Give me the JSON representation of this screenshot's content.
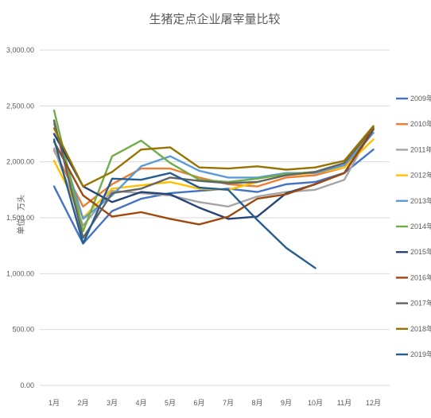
{
  "chart_data": {
    "type": "line",
    "title": "生猪定点企业屠宰量比较",
    "ylabel": "单位：万头",
    "xlabel": "",
    "ylim": [
      0,
      3000
    ],
    "yticks": [
      0,
      500,
      1000,
      1500,
      2000,
      2500,
      3000
    ],
    "ytick_labels": [
      "0.00",
      "500.00",
      "1,000.00",
      "1,500.00",
      "2,000.00",
      "2,500.00",
      "3,000.00"
    ],
    "grid": true,
    "legend_position": "right",
    "categories": [
      "1月",
      "2月",
      "3月",
      "4月",
      "5月",
      "6月",
      "7月",
      "8月",
      "9月",
      "10月",
      "11月",
      "12月"
    ],
    "series": [
      {
        "name": "2009年",
        "color": "#4472C4",
        "values": [
          1780,
          1270,
          1560,
          1670,
          1720,
          1740,
          1760,
          1730,
          1800,
          1820,
          1900,
          2110
        ]
      },
      {
        "name": "2010年",
        "color": "#ED7D31",
        "values": [
          2100,
          1600,
          1800,
          1940,
          1940,
          1860,
          1800,
          1780,
          1860,
          1880,
          1950,
          2260
        ]
      },
      {
        "name": "2011年",
        "color": "#A5A5A5",
        "values": [
          2120,
          1430,
          1740,
          1720,
          1700,
          1640,
          1600,
          1690,
          1730,
          1750,
          1840,
          2310
        ]
      },
      {
        "name": "2012年",
        "color": "#FFC000",
        "values": [
          2010,
          1500,
          1760,
          1790,
          1820,
          1760,
          1750,
          1820,
          1880,
          1900,
          1950,
          2200
        ]
      },
      {
        "name": "2013年",
        "color": "#5B9BD5",
        "values": [
          2340,
          1490,
          1700,
          1960,
          2050,
          1920,
          1860,
          1860,
          1900,
          1900,
          1970,
          2260
        ]
      },
      {
        "name": "2014年",
        "color": "#70AD47",
        "values": [
          2460,
          1380,
          2050,
          2190,
          1990,
          1840,
          1820,
          1850,
          1890,
          1910,
          1990,
          2290
        ]
      },
      {
        "name": "2015年",
        "color": "#264478",
        "values": [
          2250,
          1780,
          1640,
          1730,
          1710,
          1590,
          1490,
          1510,
          1720,
          1800,
          1900,
          2290
        ]
      },
      {
        "name": "2016年",
        "color": "#9E480E",
        "values": [
          2180,
          1700,
          1510,
          1550,
          1490,
          1440,
          1510,
          1670,
          1710,
          1800,
          1900,
          2300
        ]
      },
      {
        "name": "2017年",
        "color": "#636363",
        "values": [
          2370,
          1320,
          1720,
          1760,
          1860,
          1830,
          1810,
          1820,
          1880,
          1910,
          1990,
          2310
        ]
      },
      {
        "name": "2018年",
        "color": "#997300",
        "values": [
          2300,
          1780,
          1910,
          2110,
          2130,
          1950,
          1940,
          1960,
          1930,
          1950,
          2010,
          2320
        ]
      },
      {
        "name": "2019年",
        "color": "#255E91",
        "values": [
          2200,
          1270,
          1850,
          1840,
          1900,
          1770,
          1750,
          1480,
          1230,
          1050,
          null,
          null
        ]
      }
    ]
  }
}
